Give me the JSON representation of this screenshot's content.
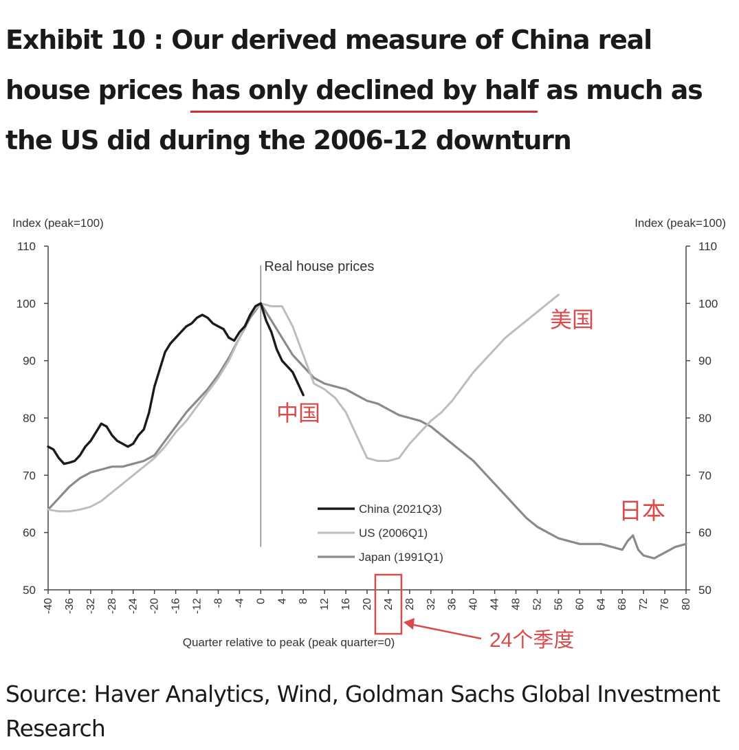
{
  "title": {
    "prefix": "Exhibit 10 : Our derived measure of China real house prices ",
    "highlight": "has only declined by half",
    "suffix": " as much as the US did during the 2006-12 downturn"
  },
  "source": "Source: Haver Analytics, Wind, Goldman Sachs Global Investment Research",
  "colors": {
    "china": "#1a1a1a",
    "us": "#bdbdbd",
    "japan": "#8a8a8a",
    "annotation": "#d94b4b"
  },
  "annotations": {
    "us_cn": "美国",
    "china_cn": "中国",
    "japan_cn": "日本",
    "quarter_cn": "24个季度"
  },
  "chart_data": {
    "type": "line",
    "subtitle": "Real house prices",
    "ylabel_left": "Index (peak=100)",
    "ylabel_right": "Index (peak=100)",
    "xlabel": "Quarter relative to peak (peak quarter=0)",
    "ylim": [
      50,
      110
    ],
    "xlim": [
      -40,
      80
    ],
    "x_ticks": [
      -40,
      -36,
      -32,
      -28,
      -24,
      -20,
      -16,
      -12,
      -8,
      -4,
      0,
      4,
      8,
      12,
      16,
      20,
      24,
      28,
      32,
      36,
      40,
      44,
      48,
      52,
      56,
      60,
      64,
      68,
      72,
      76,
      80
    ],
    "y_ticks": [
      50,
      60,
      70,
      80,
      90,
      100,
      110
    ],
    "highlighted_tick": 24,
    "grid": false,
    "legend_position": "bottom-center",
    "series": [
      {
        "name": "China (2021Q3)",
        "x": [
          -40,
          -39,
          -38,
          -37,
          -36,
          -35,
          -34,
          -33,
          -32,
          -31,
          -30,
          -29,
          -28,
          -27,
          -26,
          -25,
          -24,
          -23,
          -22,
          -21,
          -20,
          -19,
          -18,
          -17,
          -16,
          -15,
          -14,
          -13,
          -12,
          -11,
          -10,
          -9,
          -8,
          -7,
          -6,
          -5,
          -4,
          -3,
          -2,
          -1,
          0,
          1,
          2,
          3,
          4,
          5,
          6,
          7,
          8
        ],
        "y": [
          75,
          74.5,
          73,
          72,
          72.2,
          72.5,
          73.5,
          75,
          76,
          77.5,
          79,
          78.5,
          77,
          76,
          75.5,
          75,
          75.5,
          77,
          78,
          81,
          85.5,
          88.5,
          91.5,
          93,
          94,
          95,
          96,
          96.5,
          97.5,
          98,
          97.5,
          96.5,
          96,
          95.5,
          94,
          93.5,
          95,
          96,
          98,
          99.5,
          100,
          97,
          95,
          92,
          90,
          89,
          88,
          86,
          84
        ]
      },
      {
        "name": "US (2006Q1)",
        "x": [
          -40,
          -38,
          -36,
          -34,
          -32,
          -30,
          -28,
          -26,
          -24,
          -22,
          -20,
          -18,
          -16,
          -14,
          -12,
          -10,
          -8,
          -6,
          -4,
          -2,
          0,
          2,
          4,
          6,
          8,
          10,
          12,
          14,
          16,
          18,
          20,
          22,
          24,
          26,
          28,
          30,
          32,
          34,
          36,
          38,
          40,
          42,
          44,
          46,
          48,
          50,
          52,
          54,
          56
        ],
        "y": [
          64,
          63.7,
          63.7,
          64,
          64.5,
          65.5,
          67,
          68.5,
          70,
          71.5,
          73,
          75,
          77.5,
          79.5,
          82,
          84.5,
          87,
          90,
          94,
          98,
          100,
          99.5,
          99.5,
          96,
          91,
          86,
          85,
          83.5,
          81,
          77,
          73,
          72.5,
          72.5,
          73,
          75.5,
          77.5,
          79.5,
          81,
          83,
          85.5,
          88,
          90,
          92,
          94,
          95.5,
          97,
          98.5,
          100,
          101.5
        ]
      },
      {
        "name": "Japan (1991Q1)",
        "x": [
          -40,
          -38,
          -36,
          -34,
          -32,
          -30,
          -28,
          -26,
          -24,
          -22,
          -20,
          -18,
          -16,
          -14,
          -12,
          -10,
          -8,
          -6,
          -4,
          -2,
          0,
          2,
          4,
          6,
          8,
          10,
          12,
          14,
          16,
          18,
          20,
          22,
          24,
          26,
          28,
          30,
          32,
          34,
          36,
          38,
          40,
          42,
          44,
          46,
          48,
          50,
          52,
          54,
          56,
          58,
          60,
          62,
          64,
          66,
          68,
          69,
          70,
          71,
          72,
          74,
          76,
          78,
          80
        ],
        "y": [
          64,
          66,
          68,
          69.5,
          70.5,
          71,
          71.5,
          71.5,
          72,
          72.5,
          73.5,
          76,
          78.5,
          81,
          83,
          85,
          87.5,
          90.5,
          94,
          97.5,
          100,
          97,
          94,
          91,
          89,
          87,
          86,
          85.5,
          85,
          84,
          83,
          82.5,
          81.5,
          80.5,
          80,
          79.5,
          78.5,
          77,
          75.5,
          74,
          72.5,
          70.5,
          68.5,
          66.5,
          64.5,
          62.5,
          61,
          60,
          59,
          58.5,
          58,
          58,
          58,
          57.5,
          57,
          58.5,
          59.5,
          57,
          56,
          55.5,
          56.5,
          57.5,
          58
        ]
      }
    ]
  }
}
